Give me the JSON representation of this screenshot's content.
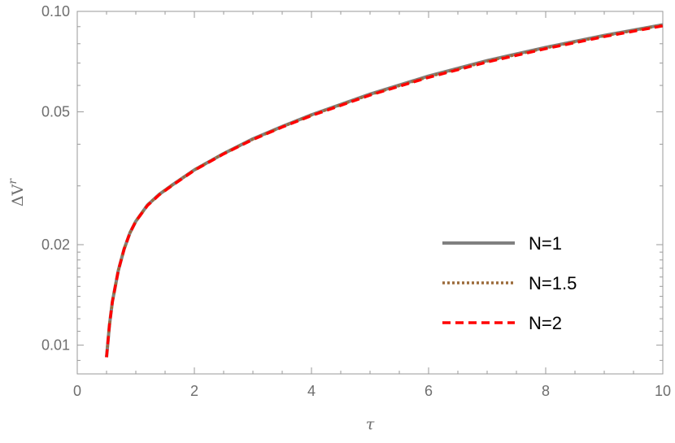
{
  "chart_data": {
    "type": "line",
    "xlabel": "τ",
    "ylabel_base": "ΔV",
    "ylabel_sup": "r",
    "xlim": [
      0,
      10
    ],
    "ylim": [
      0.0082,
      0.1
    ],
    "yscale": "log",
    "x_ticks": [
      {
        "value": 0,
        "label": "0"
      },
      {
        "value": 2,
        "label": "2"
      },
      {
        "value": 4,
        "label": "4"
      },
      {
        "value": 6,
        "label": "6"
      },
      {
        "value": 8,
        "label": "8"
      },
      {
        "value": 10,
        "label": "10"
      }
    ],
    "y_ticks": [
      {
        "value": 0.01,
        "label": "0.01"
      },
      {
        "value": 0.02,
        "label": "0.02"
      },
      {
        "value": 0.05,
        "label": "0.05"
      },
      {
        "value": 0.1,
        "label": "0.10"
      }
    ],
    "legend_position": "bottom-right",
    "x": [
      0.5,
      0.55,
      0.6,
      0.7,
      0.8,
      0.9,
      1.0,
      1.2,
      1.4,
      1.6,
      2.0,
      2.5,
      3.0,
      3.5,
      4.0,
      5.0,
      6.0,
      7.0,
      8.0,
      9.0,
      10.0
    ],
    "series": [
      {
        "name": "N=1",
        "color": "#808080",
        "style": "solid",
        "values": [
          0.0092,
          0.0115,
          0.0135,
          0.0167,
          0.0194,
          0.0217,
          0.0235,
          0.0263,
          0.0283,
          0.03,
          0.0335,
          0.0375,
          0.0415,
          0.0452,
          0.049,
          0.0565,
          0.064,
          0.0712,
          0.078,
          0.0847,
          0.0912
        ]
      },
      {
        "name": "N=1.5",
        "color": "#9c6b3a",
        "style": "dotted",
        "values": [
          0.0092,
          0.0115,
          0.0135,
          0.0167,
          0.0194,
          0.0217,
          0.0235,
          0.0263,
          0.0283,
          0.03,
          0.0335,
          0.0375,
          0.0414,
          0.0451,
          0.0489,
          0.0563,
          0.0637,
          0.0709,
          0.0777,
          0.0844,
          0.091
        ]
      },
      {
        "name": "N=2",
        "color": "#ff0000",
        "style": "dashed",
        "values": [
          0.0092,
          0.0115,
          0.0135,
          0.0167,
          0.0194,
          0.0217,
          0.0235,
          0.0262,
          0.0282,
          0.0299,
          0.0334,
          0.0374,
          0.0413,
          0.045,
          0.0487,
          0.0561,
          0.0634,
          0.0705,
          0.0773,
          0.084,
          0.0905
        ]
      }
    ]
  }
}
